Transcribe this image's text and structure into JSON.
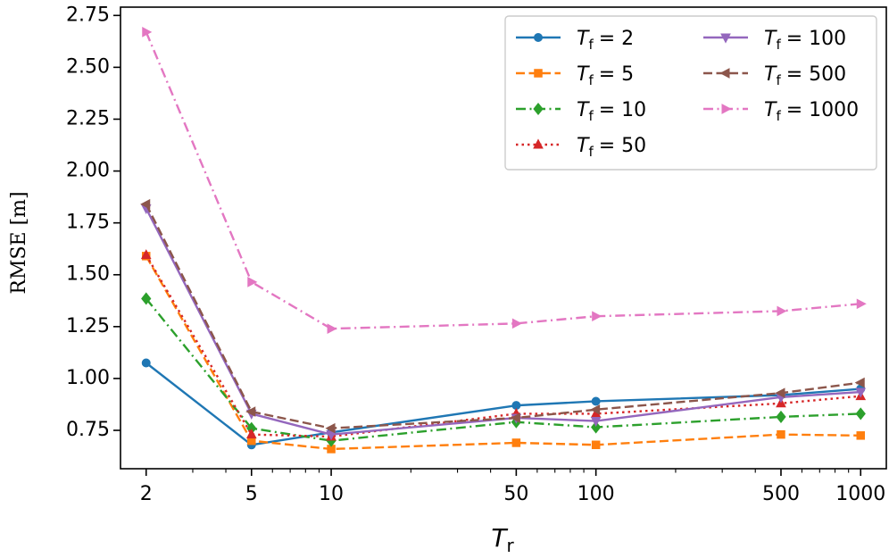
{
  "chart_data": {
    "type": "line",
    "title": "",
    "xlabel": "T_r",
    "xlabel_main": "T",
    "xlabel_sub": "r",
    "ylabel": "RMSE [m]",
    "xscale": "log",
    "xlim": [
      1.6,
      1250
    ],
    "ylim": [
      0.565,
      2.79
    ],
    "grid": false,
    "legend_location": "top-right",
    "legend_ncol": 2,
    "x": [
      2,
      5,
      10,
      50,
      100,
      500,
      1000
    ],
    "x_tick_labels": [
      "2",
      "5",
      "10",
      "50",
      "100",
      "500",
      "1000"
    ],
    "y_ticks": [
      0.75,
      1.0,
      1.25,
      1.5,
      1.75,
      2.0,
      2.25,
      2.5,
      2.75
    ],
    "y_tick_labels": [
      "0.75",
      "1.00",
      "1.25",
      "1.50",
      "1.75",
      "2.00",
      "2.25",
      "2.50",
      "2.75"
    ],
    "series": [
      {
        "name": "T_f = 2",
        "label_main": "T",
        "label_sub": "f",
        "label_value": "= 2",
        "color": "#1f77b4",
        "dash": "solid",
        "marker": "circle",
        "values": [
          1.075,
          0.68,
          0.74,
          0.87,
          0.89,
          0.92,
          0.95
        ]
      },
      {
        "name": "T_f = 5",
        "label_main": "T",
        "label_sub": "f",
        "label_value": "= 5",
        "color": "#ff7f0e",
        "dash": "dashed",
        "marker": "square",
        "values": [
          1.59,
          0.7,
          0.66,
          0.69,
          0.68,
          0.73,
          0.725
        ]
      },
      {
        "name": "T_f = 10",
        "label_main": "T",
        "label_sub": "f",
        "label_value": "= 10",
        "color": "#2ca02c",
        "dash": "dashdot",
        "marker": "diamond",
        "values": [
          1.385,
          0.76,
          0.7,
          0.79,
          0.765,
          0.815,
          0.83
        ]
      },
      {
        "name": "T_f = 50",
        "label_main": "T",
        "label_sub": "f",
        "label_value": "= 50",
        "color": "#d62728",
        "dash": "dotted",
        "marker": "triangle-up",
        "values": [
          1.595,
          0.73,
          0.72,
          0.83,
          0.83,
          0.88,
          0.915
        ]
      },
      {
        "name": "T_f = 100",
        "label_main": "T",
        "label_sub": "f",
        "label_value": "= 100",
        "color": "#9467bd",
        "dash": "solid",
        "marker": "triangle-down",
        "values": [
          1.82,
          0.83,
          0.73,
          0.81,
          0.795,
          0.91,
          0.935
        ]
      },
      {
        "name": "T_f = 500",
        "label_main": "T",
        "label_sub": "f",
        "label_value": "= 500",
        "color": "#8c564b",
        "dash": "dashed",
        "marker": "triangle-left",
        "values": [
          1.84,
          0.84,
          0.76,
          0.81,
          0.85,
          0.93,
          0.98
        ]
      },
      {
        "name": "T_f = 1000",
        "label_main": "T",
        "label_sub": "f",
        "label_value": "= 1000",
        "color": "#e377c2",
        "dash": "dashdot",
        "marker": "triangle-right",
        "values": [
          2.67,
          1.465,
          1.24,
          1.265,
          1.3,
          1.325,
          1.36
        ]
      }
    ]
  }
}
